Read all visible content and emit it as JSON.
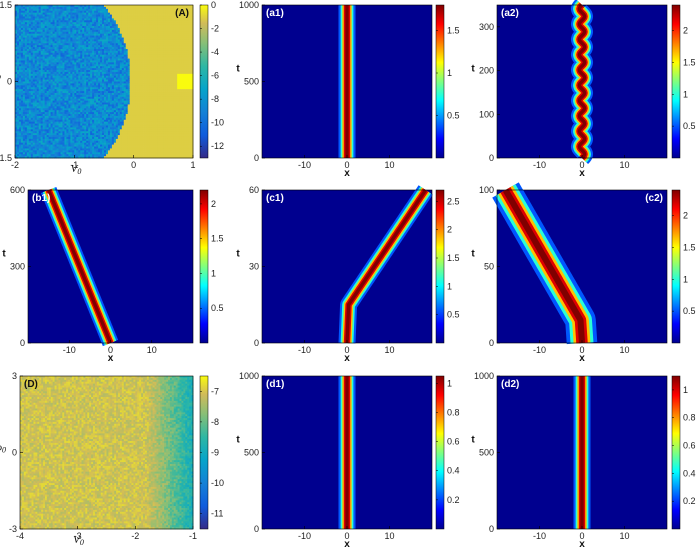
{
  "chart_data": [
    {
      "id": "A",
      "type": "heatmap",
      "panel_label": "(A)",
      "xlabel": "V",
      "xlabel_sub": "0",
      "ylabel": "ρ",
      "ylabel_sub": "",
      "x_ticks": [
        "-2",
        "-1",
        "0",
        "1"
      ],
      "y_ticks": [
        "1.5",
        "0",
        "-1.5"
      ],
      "xlim": [
        -2,
        1
      ],
      "ylim": [
        -1.5,
        1.5
      ],
      "colorbar_ticks": [
        "0",
        "-2",
        "-4",
        "-6",
        "-8",
        "-10",
        "-12"
      ],
      "colorbar_range": [
        -13,
        0
      ],
      "colormap": "parula"
    },
    {
      "id": "a1",
      "type": "heatmap",
      "panel_label": "(a1)",
      "xlabel": "x",
      "ylabel": "t",
      "x_ticks": [
        "-10",
        "0",
        "10"
      ],
      "y_ticks": [
        "1000",
        "500",
        "0"
      ],
      "xlim": [
        -20,
        20
      ],
      "ylim": [
        0,
        1000
      ],
      "colorbar_ticks": [
        "1.5",
        "1",
        "0.5"
      ],
      "colorbar_range": [
        0,
        1.8
      ],
      "soliton": {
        "kind": "stationary",
        "center": 0,
        "peak": 1.8
      }
    },
    {
      "id": "a2",
      "type": "heatmap",
      "panel_label": "(a2)",
      "xlabel": "x",
      "ylabel": "t",
      "x_ticks": [
        "-10",
        "0",
        "10"
      ],
      "y_ticks": [
        "300",
        "200",
        "100",
        "0"
      ],
      "xlim": [
        -20,
        20
      ],
      "ylim": [
        0,
        350
      ],
      "colorbar_ticks": [
        "2",
        "1.5",
        "1",
        "0.5"
      ],
      "colorbar_range": [
        0,
        2.4
      ],
      "soliton": {
        "kind": "oscillating",
        "center": 0,
        "amplitude": 0.6,
        "period": 35,
        "peak": 2.4
      }
    },
    {
      "id": "b1",
      "type": "heatmap",
      "panel_label": "(b1)",
      "xlabel": "x",
      "ylabel": "t",
      "x_ticks": [
        "-10",
        "0",
        "10"
      ],
      "y_ticks": [
        "600",
        "300",
        "0"
      ],
      "xlim": [
        -20,
        20
      ],
      "ylim": [
        0,
        600
      ],
      "colorbar_ticks": [
        "2",
        "1.5",
        "1",
        "0.5"
      ],
      "colorbar_range": [
        0,
        2.2
      ],
      "soliton": {
        "kind": "moving",
        "x_start": 0,
        "x_end": -15,
        "peak": 2.2
      }
    },
    {
      "id": "c1",
      "type": "heatmap",
      "panel_label": "(c1)",
      "xlabel": "x",
      "ylabel": "t",
      "x_ticks": [
        "-10",
        "0",
        "10"
      ],
      "y_ticks": [
        "60",
        "30",
        "0"
      ],
      "xlim": [
        -20,
        20
      ],
      "ylim": [
        0,
        60
      ],
      "colorbar_ticks": [
        "2.5",
        "2",
        "1.5",
        "1",
        "0.5"
      ],
      "colorbar_range": [
        0,
        2.7
      ],
      "soliton": {
        "kind": "kick",
        "x_start": 0,
        "t_kick": 15,
        "x_end": 18.5,
        "peak": 2.7
      }
    },
    {
      "id": "c2",
      "type": "heatmap",
      "panel_label": "(c2)",
      "xlabel": "x",
      "ylabel": "t",
      "x_ticks": [
        "-10",
        "0",
        "10"
      ],
      "y_ticks": [
        "100",
        "50",
        "0"
      ],
      "xlim": [
        -20,
        20
      ],
      "ylim": [
        0,
        100
      ],
      "colorbar_ticks": [
        "2",
        "1.5",
        "1",
        "0.5"
      ],
      "colorbar_range": [
        0,
        2.4
      ],
      "soliton": {
        "kind": "kick",
        "x_start": 0,
        "t_kick": 15,
        "x_end": -18,
        "peak": 2.4,
        "width_scale": 1.8
      }
    },
    {
      "id": "D",
      "type": "heatmap",
      "panel_label": "(D)",
      "xlabel": "V",
      "xlabel_sub": "0",
      "ylabel": "ρ",
      "ylabel_sub": "0",
      "x_ticks": [
        "-4",
        "-3",
        "-2",
        "-1"
      ],
      "y_ticks": [
        "3",
        "0",
        "-3"
      ],
      "xlim": [
        -4,
        -1
      ],
      "ylim": [
        -3,
        3
      ],
      "colorbar_ticks": [
        "-7",
        "-8",
        "-9",
        "-10",
        "-11"
      ],
      "colorbar_range": [
        -11.5,
        -6.5
      ],
      "colormap": "parula"
    },
    {
      "id": "d1",
      "type": "heatmap",
      "panel_label": "(d1)",
      "xlabel": "x",
      "ylabel": "t",
      "x_ticks": [
        "-10",
        "0",
        "10"
      ],
      "y_ticks": [
        "1000",
        "500",
        "0"
      ],
      "xlim": [
        -20,
        20
      ],
      "ylim": [
        0,
        1000
      ],
      "colorbar_ticks": [
        "1",
        "0.8",
        "0.6",
        "0.4",
        "0.2"
      ],
      "colorbar_range": [
        0,
        1.05
      ],
      "soliton": {
        "kind": "stationary",
        "center": 0,
        "peak": 1.05
      }
    },
    {
      "id": "d2",
      "type": "heatmap",
      "panel_label": "(d2)",
      "xlabel": "x",
      "ylabel": "t",
      "x_ticks": [
        "-10",
        "0",
        "10"
      ],
      "y_ticks": [
        "1000",
        "500",
        "0"
      ],
      "xlim": [
        -20,
        20
      ],
      "ylim": [
        0,
        1000
      ],
      "colorbar_ticks": [
        "1",
        "0.8",
        "0.6",
        "0.4",
        "0.2"
      ],
      "colorbar_range": [
        0,
        1.1
      ],
      "soliton": {
        "kind": "stationary",
        "center": 0,
        "peak": 1.1
      }
    }
  ]
}
